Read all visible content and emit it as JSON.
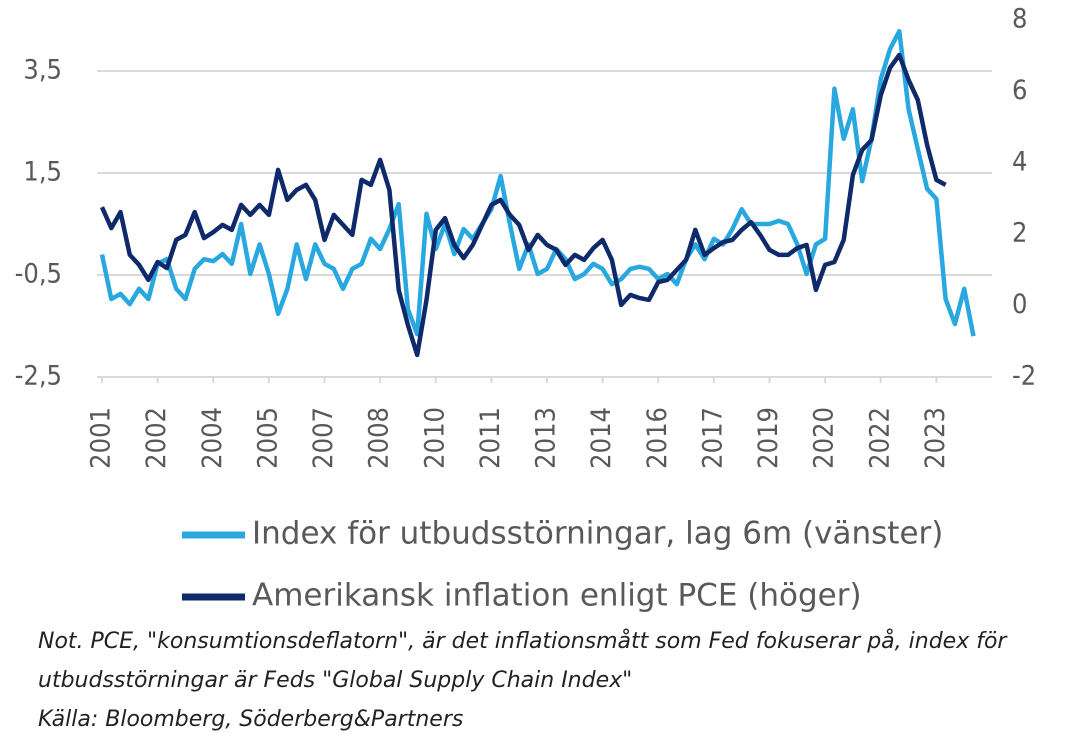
{
  "chart_data": {
    "type": "line",
    "x": [
      2001,
      2001.25,
      2001.5,
      2001.75,
      2002,
      2002.25,
      2002.5,
      2002.75,
      2003,
      2003.25,
      2003.5,
      2003.75,
      2004,
      2004.25,
      2004.5,
      2004.75,
      2005,
      2005.25,
      2005.5,
      2005.75,
      2006,
      2006.25,
      2006.5,
      2006.75,
      2007,
      2007.25,
      2007.5,
      2007.75,
      2008,
      2008.25,
      2008.5,
      2008.75,
      2009,
      2009.25,
      2009.5,
      2009.75,
      2010,
      2010.25,
      2010.5,
      2010.75,
      2011,
      2011.25,
      2011.5,
      2011.75,
      2012,
      2012.25,
      2012.5,
      2012.75,
      2013,
      2013.25,
      2013.5,
      2013.75,
      2014,
      2014.25,
      2014.5,
      2014.75,
      2015,
      2015.25,
      2015.5,
      2015.75,
      2016,
      2016.25,
      2016.5,
      2016.75,
      2017,
      2017.25,
      2017.5,
      2017.75,
      2018,
      2018.25,
      2018.5,
      2018.75,
      2019,
      2019.25,
      2019.5,
      2019.75,
      2020,
      2020.25,
      2020.5,
      2020.75,
      2021,
      2021.25,
      2021.5,
      2021.75,
      2022,
      2022.25,
      2022.5,
      2022.75,
      2023,
      2023.25,
      2023.5,
      2023.75,
      2024,
      2024.25,
      2024.5
    ],
    "series": [
      {
        "name": "Index för utbudsstörningar, lag 6m (vänster)",
        "color": "#29a8e0",
        "axis": "y",
        "values": [
          -0.1,
          -0.97,
          -0.87,
          -1.07,
          -0.77,
          -0.97,
          -0.28,
          -0.19,
          -0.77,
          -0.97,
          -0.38,
          -0.19,
          -0.23,
          -0.09,
          -0.28,
          0.5,
          -0.48,
          0.1,
          -0.48,
          -1.26,
          -0.77,
          0.1,
          -0.58,
          0.1,
          -0.28,
          -0.38,
          -0.77,
          -0.38,
          -0.28,
          0.21,
          0.01,
          0.4,
          0.89,
          -1.17,
          -1.66,
          0.7,
          0.01,
          0.5,
          -0.09,
          0.4,
          0.21,
          0.5,
          0.79,
          1.44,
          0.5,
          -0.38,
          0.1,
          -0.48,
          -0.38,
          0.01,
          -0.19,
          -0.58,
          -0.48,
          -0.28,
          -0.38,
          -0.68,
          -0.58,
          -0.38,
          -0.34,
          -0.38,
          -0.58,
          -0.48,
          -0.68,
          -0.19,
          0.1,
          -0.19,
          0.21,
          0.1,
          0.4,
          0.79,
          0.5,
          0.5,
          0.5,
          0.56,
          0.5,
          0.1,
          -0.48,
          0.1,
          0.21,
          3.15,
          2.17,
          2.75,
          1.34,
          2.17,
          3.34,
          3.93,
          4.28,
          2.75,
          1.97,
          1.19,
          0.99,
          -0.97,
          -1.46,
          -0.77,
          -1.7
        ]
      },
      {
        "name": "Amerikansk inflation enligt PCE (höger)",
        "color": "#0e2a6b",
        "axis": "y2",
        "values": [
          2.76,
          2.17,
          2.62,
          1.42,
          1.14,
          0.72,
          1.22,
          1.05,
          1.84,
          1.98,
          2.62,
          1.89,
          2.06,
          2.26,
          2.12,
          2.82,
          2.54,
          2.82,
          2.54,
          3.8,
          2.96,
          3.24,
          3.38,
          2.96,
          1.84,
          2.54,
          2.26,
          1.98,
          3.52,
          3.38,
          4.08,
          3.24,
          0.44,
          -0.54,
          -1.38,
          0.16,
          2.12,
          2.45,
          1.7,
          1.33,
          1.7,
          2.26,
          2.82,
          2.96,
          2.54,
          2.26,
          1.56,
          1.98,
          1.7,
          1.56,
          1.14,
          1.42,
          1.28,
          1.61,
          1.84,
          1.28,
          0.02,
          0.3,
          0.21,
          0.16,
          0.66,
          0.72,
          1.0,
          1.28,
          2.12,
          1.42,
          1.61,
          1.78,
          1.84,
          2.12,
          2.34,
          1.98,
          1.56,
          1.42,
          1.42,
          1.61,
          1.7,
          0.44,
          1.14,
          1.22,
          1.84,
          3.66,
          4.36,
          4.64,
          5.9,
          6.66,
          7.02,
          6.32,
          5.76,
          4.5,
          3.52,
          3.38,
          null,
          null,
          null
        ]
      }
    ],
    "xlim": [
      2001,
      2025
    ],
    "xticks": [
      2001,
      {
        "value": 2002.5,
        "label": "2002"
      },
      2004,
      {
        "value": 2005.5,
        "label": "2005"
      },
      2007,
      {
        "value": 2008.5,
        "label": "2008"
      },
      2010,
      {
        "value": 2011.5,
        "label": "2011"
      },
      2013,
      {
        "value": 2014.5,
        "label": "2014"
      },
      2016,
      {
        "value": 2017.5,
        "label": "2017"
      },
      2019,
      {
        "value": 2020.5,
        "label": "2020"
      },
      2022,
      {
        "value": 2023.5,
        "label": "2023"
      }
    ],
    "ylim": [
      -2.5,
      4.5
    ],
    "yticks": [
      {
        "value": -2.5,
        "label": "-2,5"
      },
      {
        "value": -0.5,
        "label": "-0,5"
      },
      {
        "value": 1.5,
        "label": "1,5"
      },
      {
        "value": 3.5,
        "label": "3,5"
      }
    ],
    "y2lim": [
      -2,
      8
    ],
    "y2ticks": [
      -2,
      0,
      2,
      4,
      6,
      8
    ],
    "grid": true,
    "legend": "bottom",
    "notes": [
      "Not. PCE, \"konsumtionsdeflatorn\", är det inflationsmått som Fed fokuserar på, index för",
      "utbudsstörningar är Feds \"Global Supply Chain Index\"",
      "Källa: Bloomberg, Söderberg&Partners"
    ]
  }
}
